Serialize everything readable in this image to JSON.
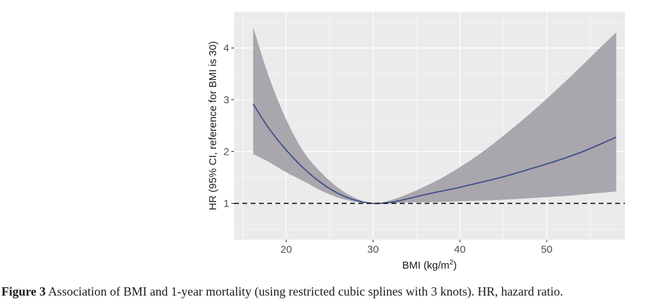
{
  "caption": {
    "label": "Figure 3",
    "text": "Association of BMI and 1-year mortality (using restricted cubic splines with 3 knots). HR, hazard ratio."
  },
  "colors": {
    "panel": "#ebebeb",
    "grid": "#ffffff",
    "line": "#3f4f8a",
    "band": "#a9a6ad",
    "reference": "#000000"
  },
  "chart_data": {
    "type": "line",
    "title": "",
    "xlabel": "BMI (kg/m2)",
    "xlabel_main": "BMI (kg/m",
    "xlabel_sup": "2",
    "xlabel_close": ")",
    "ylabel": "HR (95% CI, reference for BMI is 30)",
    "xlim": [
      14,
      59
    ],
    "ylim": [
      0.3,
      4.7
    ],
    "xticks": [
      20,
      30,
      40,
      50
    ],
    "xtick_labels": [
      "20",
      "30",
      "40",
      "50"
    ],
    "yticks": [
      1,
      2,
      3,
      4
    ],
    "ytick_labels": [
      "1",
      "2",
      "3",
      "4"
    ],
    "reference_line": {
      "y": 1,
      "style": "dashed"
    },
    "series": [
      {
        "name": "HR",
        "x": [
          16.2,
          18,
          20,
          22,
          24,
          26,
          28,
          30,
          32,
          34,
          36,
          38,
          40,
          42,
          44,
          46,
          48,
          50,
          52,
          54,
          56,
          58
        ],
        "y": [
          2.92,
          2.45,
          2.03,
          1.68,
          1.4,
          1.19,
          1.06,
          1.0,
          1.02,
          1.09,
          1.17,
          1.24,
          1.31,
          1.39,
          1.47,
          1.56,
          1.66,
          1.76,
          1.87,
          1.99,
          2.13,
          2.28
        ],
        "lower": [
          1.95,
          1.8,
          1.6,
          1.43,
          1.25,
          1.11,
          1.03,
          1.0,
          1.0,
          1.02,
          1.02,
          1.03,
          1.04,
          1.05,
          1.06,
          1.08,
          1.1,
          1.12,
          1.14,
          1.17,
          1.2,
          1.23
        ],
        "upper": [
          4.4,
          3.45,
          2.62,
          2.0,
          1.6,
          1.3,
          1.1,
          1.0,
          1.06,
          1.18,
          1.33,
          1.5,
          1.7,
          1.92,
          2.17,
          2.44,
          2.72,
          3.02,
          3.33,
          3.65,
          3.98,
          4.3
        ]
      }
    ]
  }
}
